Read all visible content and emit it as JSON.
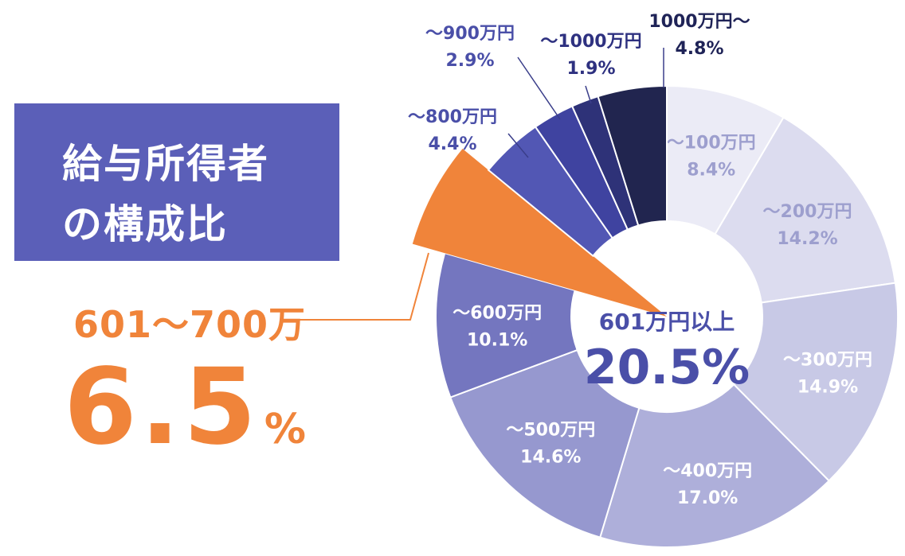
{
  "title": {
    "line1": "給与所得者",
    "line2": "の構成比"
  },
  "highlight": {
    "label": "601～700万",
    "value": "6.5",
    "unit": "%"
  },
  "center": {
    "label": "601万円以上",
    "value": "20.5%"
  },
  "chart_data": {
    "type": "pie",
    "categories": [
      "～100万円",
      "～200万円",
      "～300万円",
      "～400万円",
      "～500万円",
      "～600万円",
      "601～700万",
      "～800万円",
      "～900万円",
      "～1000万円",
      "1000万円～"
    ],
    "labels": [
      "～100万円",
      "～200万円",
      "～300万円",
      "～400万円",
      "～500万円",
      "～600万円",
      "",
      "～800万円",
      "～900万円",
      "～1000万円",
      "1000万円～"
    ],
    "values": [
      8.4,
      14.2,
      14.9,
      17.0,
      14.6,
      10.1,
      6.5,
      4.4,
      2.9,
      1.9,
      4.8
    ],
    "value_labels": [
      "8.4%",
      "14.2%",
      "14.9%",
      "17.0%",
      "14.6%",
      "10.1%",
      "",
      "4.4%",
      "2.9%",
      "1.9%",
      "4.8%"
    ],
    "colors": [
      "#ebebf6",
      "#dcdcef",
      "#c8c9e6",
      "#aeafda",
      "#9698cf",
      "#7476bf",
      "#f0843a",
      "#5257b4",
      "#3f43a0",
      "#2e3278",
      "#21254f"
    ],
    "label_colors": [
      "#9d9fce",
      "#9d9fce",
      "#ffffff",
      "#ffffff",
      "#ffffff",
      "#ffffff",
      "#f0843a",
      "#4a4fa8",
      "#4a4fa8",
      "#2e3180",
      "#1f2357"
    ],
    "highlight_index": 6,
    "donut": true
  }
}
